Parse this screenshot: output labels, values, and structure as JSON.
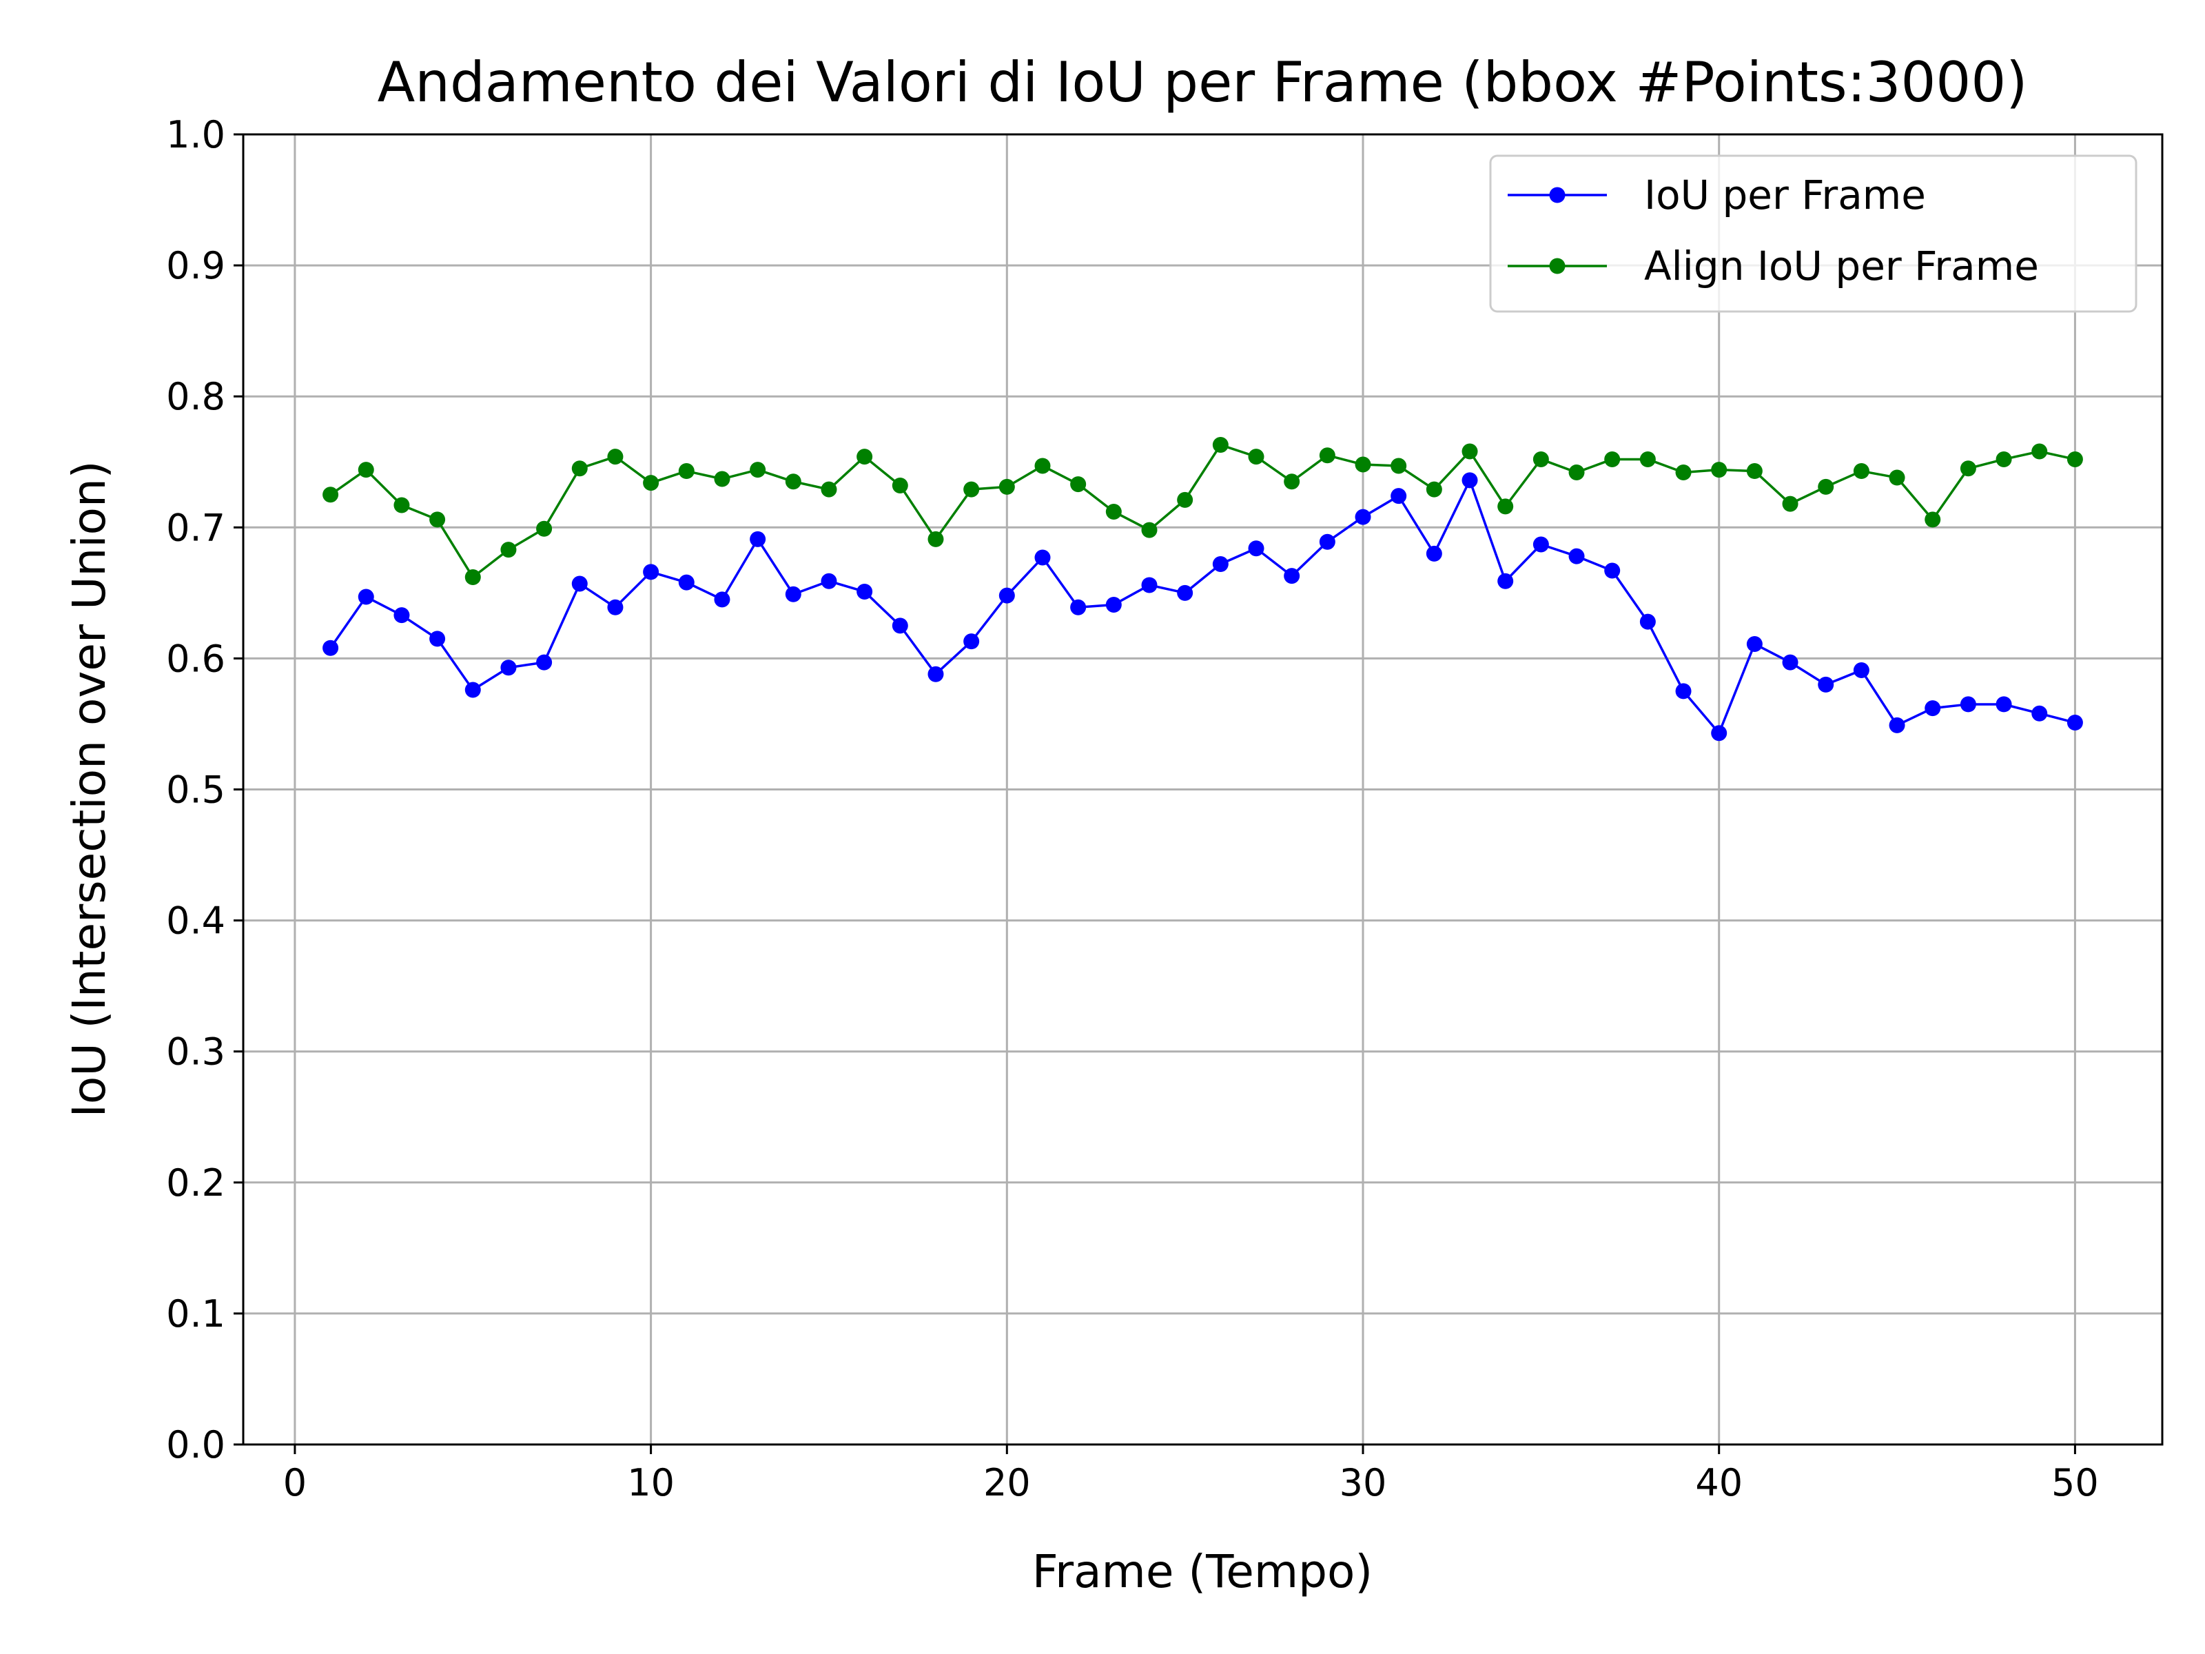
{
  "chart_data": {
    "type": "line",
    "title": "Andamento dei Valori di IoU per Frame (bbox #Points:3000)",
    "xlabel": "Frame (Tempo)",
    "ylabel": "IoU (Intersection over Union)",
    "xlim": [
      -1.45,
      52.45
    ],
    "ylim": [
      0.0,
      1.0
    ],
    "xticks": [
      0,
      10,
      20,
      30,
      40,
      50
    ],
    "xtick_labels": [
      "0",
      "10",
      "20",
      "30",
      "40",
      "50"
    ],
    "yticks": [
      0.0,
      0.1,
      0.2,
      0.3,
      0.4,
      0.5,
      0.6,
      0.7,
      0.8,
      0.9,
      1.0
    ],
    "ytick_labels": [
      "0.0",
      "0.1",
      "0.2",
      "0.3",
      "0.4",
      "0.5",
      "0.6",
      "0.7",
      "0.8",
      "0.9",
      "1.0"
    ],
    "grid": true,
    "legend_position": "top-right",
    "x": [
      1,
      2,
      3,
      4,
      5,
      6,
      7,
      8,
      9,
      10,
      11,
      12,
      13,
      14,
      15,
      16,
      17,
      18,
      19,
      20,
      21,
      22,
      23,
      24,
      25,
      26,
      27,
      28,
      29,
      30,
      31,
      32,
      33,
      34,
      35,
      36,
      37,
      38,
      39,
      40,
      41,
      42,
      43,
      44,
      45,
      46,
      47,
      48,
      49,
      50
    ],
    "series": [
      {
        "name": "IoU per Frame",
        "color": "#0000ff",
        "marker": "circle",
        "values": [
          0.608,
          0.647,
          0.633,
          0.615,
          0.576,
          0.593,
          0.597,
          0.657,
          0.639,
          0.666,
          0.658,
          0.645,
          0.691,
          0.649,
          0.659,
          0.651,
          0.625,
          0.588,
          0.613,
          0.648,
          0.677,
          0.639,
          0.641,
          0.656,
          0.65,
          0.672,
          0.684,
          0.663,
          0.689,
          0.708,
          0.724,
          0.68,
          0.736,
          0.659,
          0.687,
          0.678,
          0.667,
          0.628,
          0.575,
          0.543,
          0.611,
          0.597,
          0.58,
          0.591,
          0.549,
          0.562,
          0.565,
          0.565,
          0.558,
          0.551
        ]
      },
      {
        "name": "Align IoU per Frame",
        "color": "#008000",
        "marker": "circle",
        "values": [
          0.725,
          0.744,
          0.717,
          0.706,
          0.662,
          0.683,
          0.699,
          0.745,
          0.754,
          0.734,
          0.743,
          0.737,
          0.744,
          0.735,
          0.729,
          0.754,
          0.732,
          0.691,
          0.729,
          0.731,
          0.747,
          0.733,
          0.712,
          0.698,
          0.721,
          0.763,
          0.754,
          0.735,
          0.755,
          0.748,
          0.747,
          0.729,
          0.758,
          0.716,
          0.752,
          0.742,
          0.752,
          0.752,
          0.742,
          0.744,
          0.743,
          0.718,
          0.731,
          0.743,
          0.738,
          0.706,
          0.745,
          0.752,
          0.758,
          0.752
        ]
      }
    ]
  }
}
